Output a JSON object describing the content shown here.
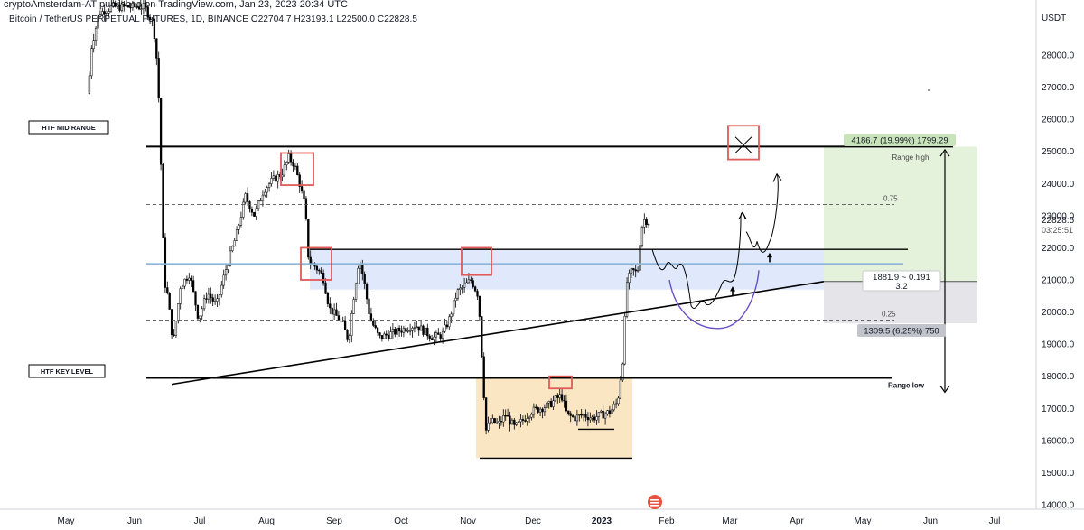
{
  "header": {
    "published": "cryptoAmsterdam-AT published on TradingView.com, Jan 23, 2023 20:34 UTC",
    "symbol": "Bitcoin / TetherUS PERPETUAL FUTURES, 1D, BINANCE  O22704.7  H23193.1  L22500.0  C22828.5"
  },
  "chart_data": {
    "type": "candlestick",
    "symbol": "Bitcoin / TetherUS PERPETUAL FUTURES",
    "interval": "1D",
    "exchange": "BINANCE",
    "last_bar": {
      "open": 22704.7,
      "high": 23193.1,
      "low": 22500.0,
      "close": 22828.5
    },
    "y_axis": {
      "unit": "USDT",
      "ticks": [
        "14000.0",
        "15000.0",
        "16000.0",
        "17000.0",
        "18000.0",
        "19000.0",
        "20000.0",
        "21000.0",
        "22000.0",
        "23000.0",
        "24000.0",
        "25000.0",
        "26000.0",
        "27000.0",
        "28000.0"
      ],
      "ylim": [
        14000,
        28500
      ]
    },
    "x_axis": {
      "ticks": [
        "May",
        "Jun",
        "Jul",
        "Aug",
        "Sep",
        "Oct",
        "Nov",
        "Dec",
        "2023",
        "Feb",
        "Mar",
        "Apr",
        "May",
        "Jun",
        "Jul"
      ]
    },
    "price_label": "22828.5",
    "countdown": "03:25:51",
    "horizontal_levels": [
      {
        "price": 25150,
        "label": "HTF MID RANGE"
      },
      {
        "price": 17950,
        "label": "HTF KEY LEVEL"
      },
      {
        "price": 21950
      },
      {
        "price": 21500
      }
    ],
    "fib_levels": [
      {
        "level": "0.75",
        "price": 23350
      },
      {
        "level": "0.25",
        "price": 19750
      }
    ],
    "position": {
      "target_label": "4186.7 (19.99%) 1799.29",
      "range_high_label": "Range high",
      "entry_label_1": "1881.9 ~ 0.191",
      "entry_label_2": "3.2",
      "stop_label": "1309.5 (6.25%) 750",
      "range_low_label": "Range low",
      "target_price": 25150,
      "entry_price": 20950,
      "stop_price": 19650
    },
    "annotations": {
      "htf_mid_range": "HTF MID RANGE",
      "htf_key_level": "HTF KEY LEVEL",
      "range_low": "Range low"
    },
    "colors": {
      "candle_body": "#ffffff",
      "candle_outline": "#000000",
      "range_box_fill": "#dfe9fb",
      "range_mid_line": "#8ab4d8",
      "accumulation_fill": "#fbe6c4",
      "target_fill": "#e4f2dc",
      "stop_fill": "#e5e5e9",
      "red_box": "#e05a5a",
      "purple_curve": "#6b4fc9"
    }
  }
}
